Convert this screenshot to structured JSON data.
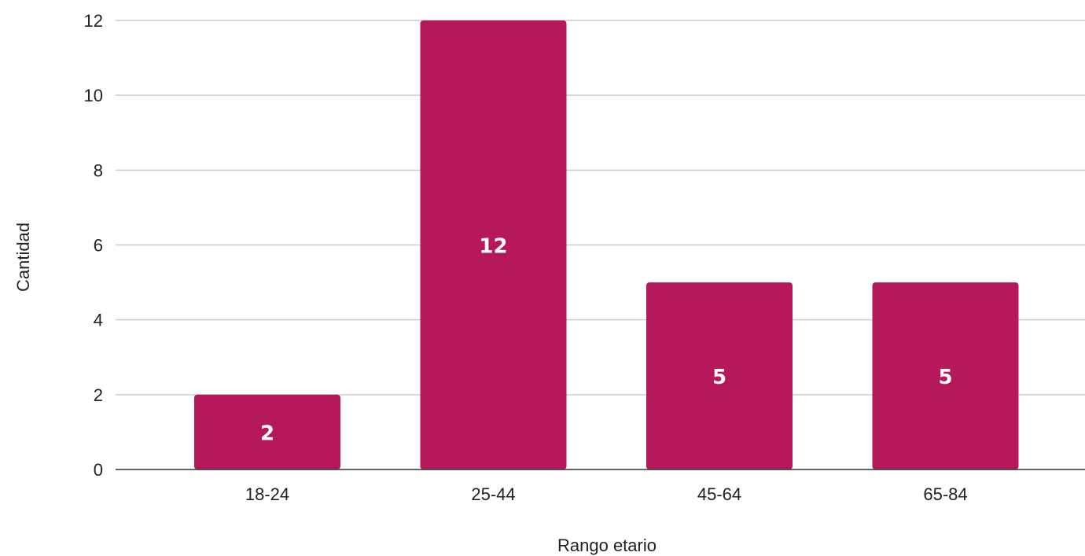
{
  "chart_data": {
    "type": "bar",
    "categories": [
      "18-24",
      "25-44",
      "45-64",
      "65-84"
    ],
    "values": [
      2,
      12,
      5,
      5
    ],
    "data_labels": [
      "2",
      "12",
      "5",
      "5"
    ],
    "xlabel": "Rango etario",
    "ylabel": "Cantidad",
    "ylim": [
      0,
      12
    ],
    "yticks": [
      "0",
      "2",
      "4",
      "6",
      "8",
      "10",
      "12"
    ],
    "grid": true,
    "legend": "none",
    "colors": {
      "bar": "#b5195b",
      "grid": "#cccccc",
      "axis": "#333333",
      "text": "#222222",
      "label": "#ffffff"
    }
  }
}
